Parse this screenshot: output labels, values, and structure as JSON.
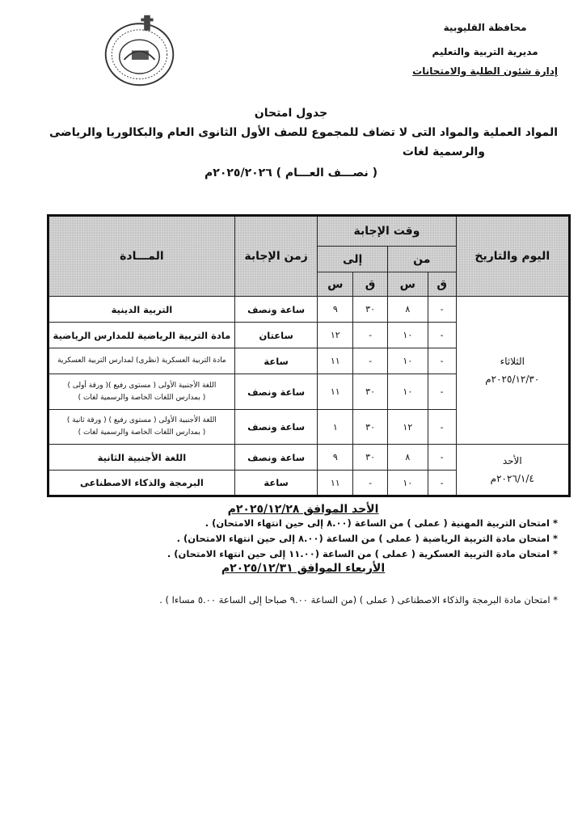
{
  "header": {
    "governorate": "محافظة القليوبية",
    "directorate": "مديرية التربية والتعليم",
    "department": "إدارة شئون الطلبة والامتحانات"
  },
  "logo_icon": "qalyubia-governorate-seal",
  "title": "جدول امتحان",
  "subtitle_line1": "المواد العملية والمواد التى لا تضاف للمجموع للصف الأول الثانوى العام والبكالوريا والرياضى",
  "subtitle_line2": "والرسمية لغات",
  "term": "( نصـــف العـــام ) ٢٠٢٥/٢٠٢٦م",
  "table": {
    "headers": {
      "day_date": "اليوم والتاريخ",
      "answer_time": "وقت الإجابة",
      "from": "من",
      "to": "إلى",
      "minute": "ق",
      "hour": "س",
      "duration": "زمن الإجابة",
      "subject": "المـــادة"
    },
    "days": [
      {
        "day": "الثلاثاء",
        "date": "٢٠٢٥/١٢/٣٠م"
      },
      {
        "day": "الأحد",
        "date": "٢٠٢٦/١/٤م"
      }
    ],
    "rows": [
      {
        "from_m": "-",
        "from_h": "٨",
        "to_m": "٣٠",
        "to_h": "٩",
        "duration": "ساعة ونصف",
        "subject": "التربية الدينية"
      },
      {
        "from_m": "-",
        "from_h": "١٠",
        "to_m": "-",
        "to_h": "١٢",
        "duration": "ساعتان",
        "subject": "مادة التربية الرياضية للمدارس الرياضية"
      },
      {
        "from_m": "-",
        "from_h": "١٠",
        "to_m": "-",
        "to_h": "١١",
        "duration": "ساعة",
        "subject": "مادة التربية العسكرية (نظرى) لمدارس التربية العسكرية"
      },
      {
        "from_m": "-",
        "from_h": "١٠",
        "to_m": "٣٠",
        "to_h": "١١",
        "duration": "ساعة ونصف",
        "subject": "اللغة الأجنبية الأولى ( مستوى رفيع )( ورقة أولى )",
        "subject2": "( بمدارس اللغات الخاصة والرسمية لغات )"
      },
      {
        "from_m": "-",
        "from_h": "١٢",
        "to_m": "٣٠",
        "to_h": "١",
        "duration": "ساعة ونصف",
        "subject": "اللغة الأجنبية الأولى ( مستوى رفيع ) ( ورقة ثانية )",
        "subject2": "( بمدارس اللغات الخاصة والرسمية لغات )"
      },
      {
        "from_m": "-",
        "from_h": "٨",
        "to_m": "٣٠",
        "to_h": "٩",
        "duration": "ساعة ونصف",
        "subject": "اللغة الأجنبية الثانية"
      },
      {
        "from_m": "-",
        "from_h": "١٠",
        "to_m": "-",
        "to_h": "١١",
        "duration": "ساعة",
        "subject": "البرمجة والذكاء الاصطناعى"
      }
    ]
  },
  "notes": {
    "section1_title": "الأحد الموافق ٢٠٢٥/١٢/٢٨م",
    "section1_items": [
      "* امتحان التربية المهنية ( عملى ) من الساعة (٨.٠٠ إلى حين انتهاء الامتحان) .",
      "* امتحان مادة التربية الرياضية ( عملى ) من الساعة (٨.٠٠ إلى حين انتهاء الامتحان) .",
      "* امتحان مادة التربية العسكرية ( عملى ) من الساعة (١١.٠٠ إلى حين انتهاء الامتحان) ."
    ],
    "section2_title": "الأربعاء الموافق ٢٠٢٥/١٢/٣١م",
    "section2_items": [
      "* امتحان مادة البرمجة والذكاء الاصطناعى ( عملى ) (من الساعة ٩.٠٠ صباحا إلى الساعة ٥.٠٠ مساءا ) ."
    ]
  }
}
